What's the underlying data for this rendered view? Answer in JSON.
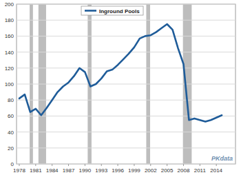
{
  "chart_data": {
    "type": "line",
    "x": [
      1978,
      1979,
      1980,
      1981,
      1982,
      1983,
      1984,
      1985,
      1986,
      1987,
      1988,
      1989,
      1990,
      1991,
      1992,
      1993,
      1994,
      1995,
      1996,
      1997,
      1998,
      1999,
      2000,
      2001,
      2002,
      2003,
      2004,
      2005,
      2006,
      2007,
      2008,
      2009,
      2010,
      2011,
      2012,
      2013,
      2014,
      2015
    ],
    "series": [
      {
        "name": "Inground Pools",
        "color": "#1f5c99",
        "values": [
          82,
          87,
          65,
          69,
          61,
          70,
          80,
          90,
          97,
          102,
          110,
          120,
          115,
          97,
          100,
          107,
          116,
          118,
          124,
          131,
          138,
          146,
          157,
          160,
          161,
          165,
          170,
          175,
          168,
          145,
          125,
          55,
          57,
          55,
          53,
          55,
          58,
          61
        ]
      }
    ],
    "xlim": [
      1977.5,
      2017.5
    ],
    "xticks": [
      1978,
      1981,
      1984,
      1987,
      1990,
      1993,
      1996,
      1999,
      2002,
      2005,
      2008,
      2011,
      2014
    ],
    "ylim": [
      0,
      200
    ],
    "yticks": [
      0,
      20,
      40,
      60,
      80,
      100,
      120,
      140,
      160,
      180,
      200
    ],
    "grid": true,
    "legend": "top",
    "shaded_ranges": [
      [
        1979.9,
        1980.5
      ],
      [
        1981.5,
        1982.9
      ],
      [
        1990.5,
        1991.2
      ],
      [
        2001.2,
        2001.9
      ],
      [
        2007.9,
        2009.5
      ]
    ],
    "annotation": "PKdata"
  }
}
